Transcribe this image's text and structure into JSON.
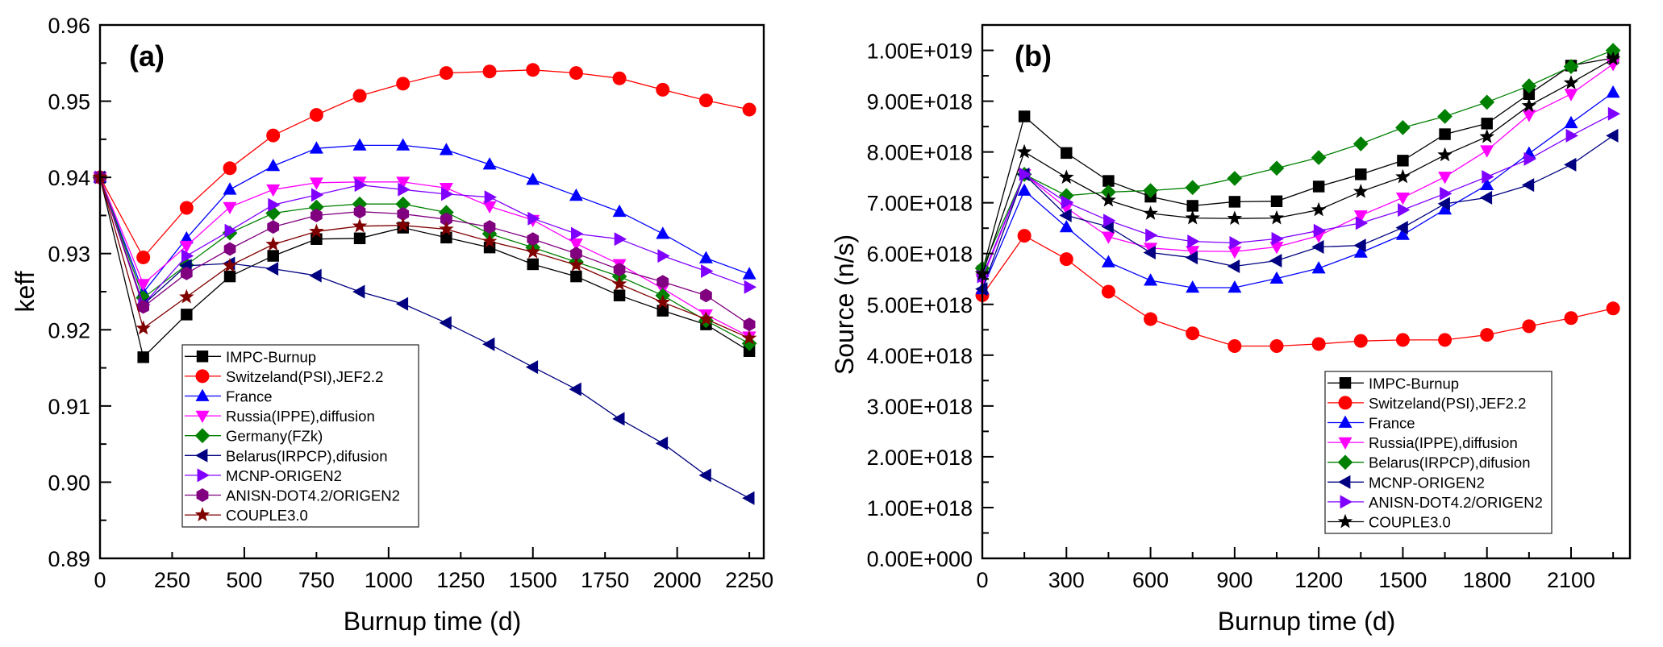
{
  "chart_data": [
    {
      "type": "line",
      "panel_label": "(a)",
      "title": "",
      "xlabel": "Burnup time (d)",
      "ylabel": "keff",
      "xlim": [
        0,
        2300
      ],
      "ylim": [
        0.89,
        0.96
      ],
      "x_ticks": [
        0,
        250,
        500,
        750,
        1000,
        1250,
        1500,
        1750,
        2000,
        2250
      ],
      "x_tick_labels": [
        "0",
        "250",
        "500",
        "750",
        "1000",
        "1250",
        "1500",
        "1750",
        "2000",
        "2250"
      ],
      "y_ticks": [
        0.89,
        0.9,
        0.91,
        0.92,
        0.93,
        0.94,
        0.95,
        0.96
      ],
      "y_tick_labels": [
        "0.89",
        "0.90",
        "0.91",
        "0.92",
        "0.93",
        "0.94",
        "0.95",
        "0.96"
      ],
      "grid": false,
      "legend_position": "bottom-left",
      "x": [
        0,
        150,
        300,
        450,
        600,
        750,
        900,
        1050,
        1200,
        1350,
        1500,
        1650,
        1800,
        1950,
        2100,
        2250
      ],
      "series": [
        {
          "name": "IMPC-Burnup",
          "color": "#000000",
          "marker": "square",
          "values": [
            0.94,
            0.9164,
            0.922,
            0.927,
            0.9297,
            0.9319,
            0.932,
            0.9334,
            0.9321,
            0.9308,
            0.9286,
            0.927,
            0.9245,
            0.9225,
            0.9207,
            0.9172
          ]
        },
        {
          "name": "Switzeland(PSI),JEF2.2",
          "color": "#ff0000",
          "marker": "circle",
          "values": [
            0.94,
            0.9295,
            0.936,
            0.9412,
            0.9455,
            0.9482,
            0.9507,
            0.9523,
            0.9537,
            0.9539,
            0.9541,
            0.9537,
            0.953,
            0.9515,
            0.9501,
            0.9489
          ]
        },
        {
          "name": "France",
          "color": "#0000ff",
          "marker": "triangle-up",
          "values": [
            0.94,
            0.9249,
            0.932,
            0.9384,
            0.9415,
            0.9438,
            0.9442,
            0.9442,
            0.9436,
            0.9417,
            0.9397,
            0.9376,
            0.9355,
            0.9326,
            0.9294,
            0.9273
          ]
        },
        {
          "name": "Russia(IPPE),diffusion",
          "color": "#ff00ff",
          "marker": "triangle-down",
          "values": [
            0.94,
            0.926,
            0.931,
            0.9361,
            0.9384,
            0.9393,
            0.9394,
            0.9394,
            0.9386,
            0.9362,
            0.9344,
            0.9313,
            0.9286,
            0.9254,
            0.922,
            0.9191
          ]
        },
        {
          "name": "Germany(FZk)",
          "color": "#008000",
          "marker": "diamond",
          "values": [
            0.94,
            0.9242,
            0.9285,
            0.9327,
            0.9353,
            0.9361,
            0.9365,
            0.9365,
            0.9354,
            0.9326,
            0.9308,
            0.9289,
            0.927,
            0.9245,
            0.9212,
            0.9182
          ]
        },
        {
          "name": "Belarus(IRPCP),difusion",
          "color": "#000080",
          "marker": "triangle-left",
          "values": [
            0.94,
            0.9233,
            0.9284,
            0.9287,
            0.928,
            0.9271,
            0.925,
            0.9234,
            0.9209,
            0.9181,
            0.9151,
            0.9122,
            0.9083,
            0.9051,
            0.9009,
            0.8979
          ]
        },
        {
          "name": "MCNP-ORIGEN2",
          "color": "#8000ff",
          "marker": "triangle-right",
          "values": [
            0.94,
            0.9233,
            0.9297,
            0.933,
            0.9364,
            0.9377,
            0.939,
            0.9384,
            0.9378,
            0.9374,
            0.9346,
            0.9326,
            0.9319,
            0.9297,
            0.9277,
            0.9256
          ]
        },
        {
          "name": "ANISN-DOT4.2/ORIGEN2",
          "color": "#800080",
          "marker": "hexagon",
          "values": [
            0.94,
            0.923,
            0.9274,
            0.9306,
            0.9335,
            0.935,
            0.9355,
            0.9352,
            0.9345,
            0.9335,
            0.9319,
            0.93,
            0.9279,
            0.9263,
            0.9245,
            0.9207
          ]
        },
        {
          "name": "COUPLE3.0",
          "color": "#800000",
          "marker": "star",
          "values": [
            0.94,
            0.9202,
            0.9243,
            0.9284,
            0.9312,
            0.9329,
            0.9336,
            0.9337,
            0.9332,
            0.9316,
            0.9302,
            0.9285,
            0.926,
            0.9236,
            0.9214,
            0.9189
          ]
        }
      ]
    },
    {
      "type": "line",
      "panel_label": "(b)",
      "title": "",
      "xlabel": "Burnup time (d)",
      "ylabel": "Source (n/s)",
      "xlim": [
        0,
        2310
      ],
      "ylim": [
        0,
        1.05e+19
      ],
      "x_ticks": [
        0,
        300,
        600,
        900,
        1200,
        1500,
        1800,
        2100
      ],
      "x_tick_labels": [
        "0",
        "300",
        "600",
        "900",
        "1200",
        "1500",
        "1800",
        "2100"
      ],
      "y_ticks": [
        0,
        1e+18,
        2e+18,
        3e+18,
        4e+18,
        5e+18,
        6e+18,
        7e+18,
        8e+18,
        9e+18,
        1e+19
      ],
      "y_tick_labels": [
        "0.00E+000",
        "1.00E+018",
        "2.00E+018",
        "3.00E+018",
        "4.00E+018",
        "5.00E+018",
        "6.00E+018",
        "7.00E+018",
        "8.00E+018",
        "9.00E+018",
        "1.00E+019"
      ],
      "grid": false,
      "legend_position": "bottom-right",
      "x": [
        0,
        150,
        300,
        450,
        600,
        750,
        900,
        1050,
        1200,
        1350,
        1500,
        1650,
        1800,
        1950,
        2100,
        2250
      ],
      "series": [
        {
          "name": "IMPC-Burnup",
          "color": "#000000",
          "marker": "square",
          "values": [
            5.65e+18,
            8.7e+18,
            7.98e+18,
            7.43e+18,
            7.12e+18,
            6.94e+18,
            7.02e+18,
            7.03e+18,
            7.32e+18,
            7.56e+18,
            7.83e+18,
            8.35e+18,
            8.56e+18,
            9.14e+18,
            9.7e+18,
            9.85e+18
          ]
        },
        {
          "name": "Switzeland(PSI),JEF2.2",
          "color": "#ff0000",
          "marker": "circle",
          "values": [
            5.18e+18,
            6.35e+18,
            5.89e+18,
            5.25e+18,
            4.71e+18,
            4.43e+18,
            4.18e+18,
            4.18e+18,
            4.22e+18,
            4.28e+18,
            4.3e+18,
            4.3e+18,
            4.4e+18,
            4.57e+18,
            4.73e+18,
            4.92e+18
          ]
        },
        {
          "name": "France",
          "color": "#0000ff",
          "marker": "triangle-up",
          "values": [
            5.3e+18,
            7.24e+18,
            6.52e+18,
            5.83e+18,
            5.47e+18,
            5.33e+18,
            5.33e+18,
            5.51e+18,
            5.71e+18,
            6.02e+18,
            6.37e+18,
            6.87e+18,
            7.35e+18,
            7.97e+18,
            8.57e+18,
            9.17e+18
          ]
        },
        {
          "name": "Russia(IPPE),diffusion",
          "color": "#ff00ff",
          "marker": "triangle-down",
          "values": [
            5.5e+18,
            7.56e+18,
            6.9e+18,
            6.33e+18,
            6.11e+18,
            6.05e+18,
            6.04e+18,
            6.13e+18,
            6.35e+18,
            6.75e+18,
            7.1e+18,
            7.51e+18,
            8.03e+18,
            8.73e+18,
            9.14e+18,
            9.73e+18
          ]
        },
        {
          "name": "Belarus(IRPCP),difusion",
          "color": "#008000",
          "marker": "diamond",
          "values": [
            5.71e+18,
            7.56e+18,
            7.14e+18,
            7.21e+18,
            7.24e+18,
            7.3e+18,
            7.48e+18,
            7.68e+18,
            7.89e+18,
            8.16e+18,
            8.48e+18,
            8.7e+18,
            8.98e+18,
            9.3e+18,
            9.68e+18,
            1e+19
          ]
        },
        {
          "name": "MCNP-ORIGEN2",
          "color": "#000080",
          "marker": "triangle-left",
          "values": [
            5.3e+18,
            7.56e+18,
            6.75e+18,
            6.53e+18,
            6.02e+18,
            5.92e+18,
            5.75e+18,
            5.86e+18,
            6.13e+18,
            6.16e+18,
            6.51e+18,
            6.98e+18,
            7.1e+18,
            7.35e+18,
            7.75e+18,
            8.32e+18
          ]
        },
        {
          "name": "ANISN-DOT4.2/ORIGEN2",
          "color": "#8000ff",
          "marker": "triangle-right",
          "values": [
            5.55e+18,
            7.56e+18,
            7.01e+18,
            6.65e+18,
            6.36e+18,
            6.24e+18,
            6.21e+18,
            6.29e+18,
            6.45e+18,
            6.6e+18,
            6.86e+18,
            7.18e+18,
            7.51e+18,
            7.86e+18,
            8.32e+18,
            8.75e+18
          ]
        },
        {
          "name": "COUPLE3.0",
          "color": "#000000",
          "marker": "star",
          "values": [
            5.6e+18,
            8e+18,
            7.5e+18,
            7.05e+18,
            6.79e+18,
            6.7e+18,
            6.69e+18,
            6.7e+18,
            6.86e+18,
            7.22e+18,
            7.51e+18,
            7.94e+18,
            8.3e+18,
            8.91e+18,
            9.36e+18,
            9.83e+18
          ]
        }
      ]
    }
  ]
}
